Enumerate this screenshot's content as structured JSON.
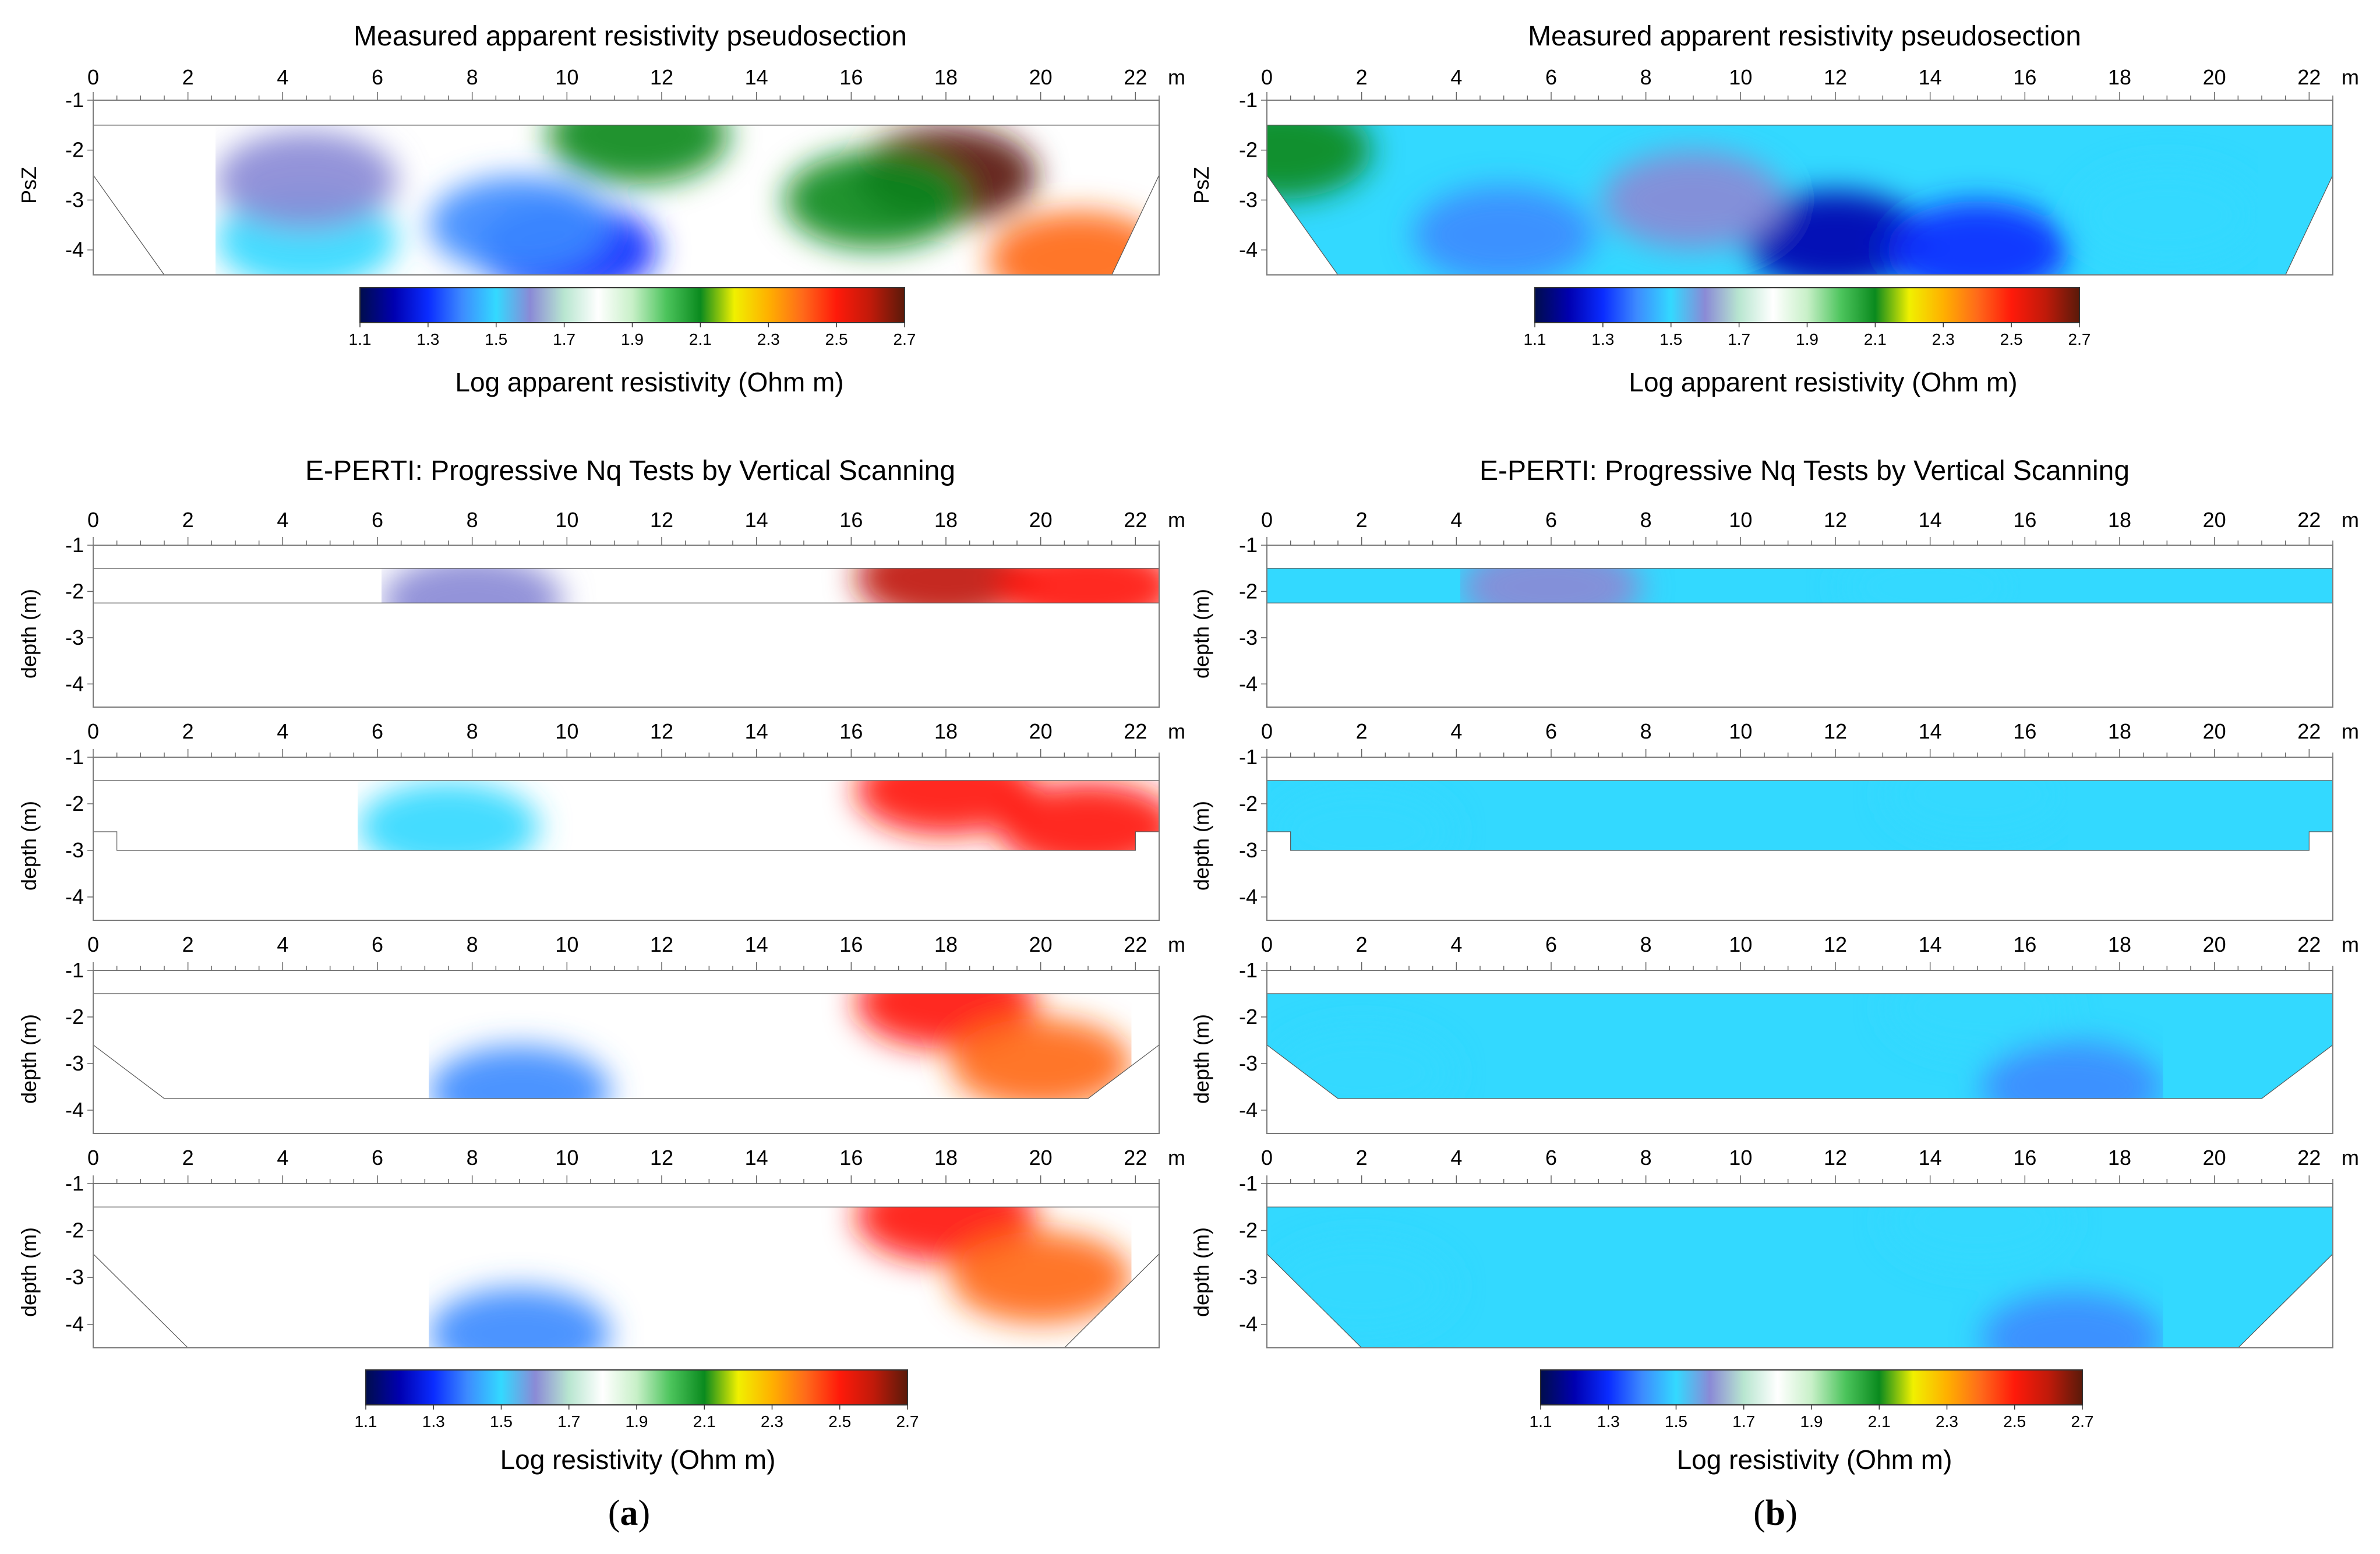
{
  "figure": {
    "columns": [
      {
        "id": "a",
        "tag": "a",
        "pseudosection": {
          "title": "Measured apparent resistivity pseudosection",
          "y_axis_label": "PsZ",
          "colorbar_title": "Log apparent resistivity (Ohm m)"
        },
        "eperti": {
          "title": "E-PERTI: Progressive Nq Tests by Vertical Scanning",
          "y_axis_label": "depth (m)",
          "colorbar_title": "Log resistivity (Ohm m)"
        }
      },
      {
        "id": "b",
        "tag": "b",
        "pseudosection": {
          "title": "Measured apparent resistivity pseudosection",
          "y_axis_label": "PsZ",
          "colorbar_title": "Log apparent resistivity (Ohm m)"
        },
        "eperti": {
          "title": "E-PERTI: Progressive Nq Tests by Vertical Scanning",
          "y_axis_label": "depth (m)",
          "colorbar_title": "Log resistivity (Ohm m)"
        }
      }
    ],
    "x_unit": "m",
    "colorbar_ticks": [
      "1.1",
      "1.3",
      "1.5",
      "1.7",
      "1.9",
      "2.1",
      "2.3",
      "2.5",
      "2.7"
    ],
    "colormap": [
      "#000d4d",
      "#0000b0",
      "#0a2cff",
      "#3d8bff",
      "#33d9ff",
      "#8a8ad6",
      "#b8e6d0",
      "#ffffff",
      "#c8f0c8",
      "#4cc45c",
      "#0a8a1e",
      "#f0f000",
      "#ffb000",
      "#ff6a1a",
      "#ff1a0a",
      "#c01a0a",
      "#5a1a0a"
    ]
  },
  "chart_data": [
    {
      "panel": "a-pseudosection",
      "type": "heatmap",
      "title": "Measured apparent resistivity pseudosection",
      "xlabel": "m",
      "ylabel": "PsZ",
      "xlim": [
        0,
        22.5
      ],
      "ylim": [
        -1,
        -4.5
      ],
      "clim": [
        1.1,
        2.7
      ],
      "x_ticks": [
        0,
        2,
        4,
        6,
        8,
        10,
        12,
        14,
        16,
        18,
        20,
        22
      ],
      "y_ticks": [
        -1,
        -2,
        -3,
        -4
      ],
      "data_top": -1.5,
      "data_bottom": -4.5,
      "outline": [
        [
          0,
          -1.5
        ],
        [
          22.5,
          -1.5
        ],
        [
          22.5,
          -2.5
        ],
        [
          21.5,
          -4.5
        ],
        [
          1.5,
          -4.5
        ],
        [
          0,
          -2.5
        ]
      ],
      "anomalies": [
        {
          "x": 18,
          "z": -2.5,
          "value": 2.7
        },
        {
          "x": 10,
          "z": -4.0,
          "value": 1.3
        },
        {
          "x": 9,
          "z": -3.5,
          "value": 1.45
        },
        {
          "x": 4.5,
          "z": -3.8,
          "value": 1.5
        },
        {
          "x": 4.5,
          "z": -2.6,
          "value": 1.65
        },
        {
          "x": 11.5,
          "z": -1.7,
          "value": 2.15
        },
        {
          "x": 16.5,
          "z": -3.0,
          "value": 2.1
        },
        {
          "x": 20.8,
          "z": -4.2,
          "value": 2.4
        }
      ]
    },
    {
      "panel": "b-pseudosection",
      "type": "heatmap",
      "title": "Measured apparent resistivity pseudosection",
      "xlabel": "m",
      "ylabel": "PsZ",
      "xlim": [
        0,
        22.5
      ],
      "ylim": [
        -1,
        -4.5
      ],
      "clim": [
        1.1,
        2.7
      ],
      "x_ticks": [
        0,
        2,
        4,
        6,
        8,
        10,
        12,
        14,
        16,
        18,
        20,
        22
      ],
      "y_ticks": [
        -1,
        -2,
        -3,
        -4
      ],
      "data_top": -1.5,
      "data_bottom": -4.5,
      "outline": [
        [
          0,
          -1.5
        ],
        [
          22.5,
          -1.5
        ],
        [
          22.5,
          -2.5
        ],
        [
          21.5,
          -4.5
        ],
        [
          1.5,
          -4.5
        ],
        [
          0,
          -2.5
        ]
      ],
      "anomalies": [
        {
          "x": 12,
          "z": -3.8,
          "value": 1.2
        },
        {
          "x": 15,
          "z": -4.0,
          "value": 1.3
        },
        {
          "x": 5,
          "z": -3.7,
          "value": 1.35
        },
        {
          "x": 0.3,
          "z": -2.0,
          "value": 2.1
        },
        {
          "x": 9,
          "z": -3.0,
          "value": 1.6
        },
        {
          "x": 19,
          "z": -3.3,
          "value": 1.55
        }
      ]
    },
    {
      "panel": "a-scan-1",
      "type": "heatmap",
      "xlabel": "m",
      "ylabel": "depth (m)",
      "xlim": [
        0,
        22.5
      ],
      "ylim": [
        -1,
        -4.5
      ],
      "clim": [
        1.1,
        2.7
      ],
      "x_ticks": [
        0,
        2,
        4,
        6,
        8,
        10,
        12,
        14,
        16,
        18,
        20,
        22
      ],
      "y_ticks": [
        -1,
        -2,
        -3,
        -4
      ],
      "data_top": -1.5,
      "data_bottom": -2.25,
      "outline": [
        [
          0,
          -1.5
        ],
        [
          22.5,
          -1.5
        ],
        [
          22.5,
          -2.25
        ],
        [
          0,
          -2.25
        ]
      ],
      "anomalies": [
        {
          "x": 18,
          "z": -1.7,
          "value": 2.6
        },
        {
          "x": 21,
          "z": -1.9,
          "value": 2.5
        },
        {
          "x": 8,
          "z": -2.2,
          "value": 1.6
        }
      ]
    },
    {
      "panel": "a-scan-2",
      "type": "heatmap",
      "xlabel": "m",
      "ylabel": "depth (m)",
      "xlim": [
        0,
        22.5
      ],
      "ylim": [
        -1,
        -4.5
      ],
      "clim": [
        1.1,
        2.7
      ],
      "x_ticks": [
        0,
        2,
        4,
        6,
        8,
        10,
        12,
        14,
        16,
        18,
        20,
        22
      ],
      "y_ticks": [
        -1,
        -2,
        -3,
        -4
      ],
      "data_top": -1.5,
      "data_bottom": -3.0,
      "outline": [
        [
          0,
          -1.5
        ],
        [
          22.5,
          -1.5
        ],
        [
          22.5,
          -2.6
        ],
        [
          22,
          -2.6
        ],
        [
          22,
          -3.0
        ],
        [
          0.5,
          -3.0
        ],
        [
          0.5,
          -2.6
        ],
        [
          0,
          -2.6
        ]
      ],
      "anomalies": [
        {
          "x": 18,
          "z": -1.7,
          "value": 2.55
        },
        {
          "x": 21,
          "z": -2.5,
          "value": 2.45
        },
        {
          "x": 7.5,
          "z": -2.5,
          "value": 1.55
        }
      ]
    },
    {
      "panel": "a-scan-3",
      "type": "heatmap",
      "xlabel": "m",
      "ylabel": "depth (m)",
      "xlim": [
        0,
        22.5
      ],
      "ylim": [
        -1,
        -4.5
      ],
      "clim": [
        1.1,
        2.7
      ],
      "x_ticks": [
        0,
        2,
        4,
        6,
        8,
        10,
        12,
        14,
        16,
        18,
        20,
        22
      ],
      "y_ticks": [
        -1,
        -2,
        -3,
        -4
      ],
      "data_top": -1.5,
      "data_bottom": -3.75,
      "outline": [
        [
          0,
          -1.5
        ],
        [
          22.5,
          -1.5
        ],
        [
          22.5,
          -2.6
        ],
        [
          21,
          -3.75
        ],
        [
          1.5,
          -3.75
        ],
        [
          0,
          -2.6
        ]
      ],
      "anomalies": [
        {
          "x": 18,
          "z": -1.7,
          "value": 2.55
        },
        {
          "x": 20,
          "z": -3.0,
          "value": 2.4
        },
        {
          "x": 9,
          "z": -3.6,
          "value": 1.45
        }
      ]
    },
    {
      "panel": "a-scan-4",
      "type": "heatmap",
      "xlabel": "m",
      "ylabel": "depth (m)",
      "xlim": [
        0,
        22.5
      ],
      "ylim": [
        -1,
        -4.5
      ],
      "clim": [
        1.1,
        2.7
      ],
      "x_ticks": [
        0,
        2,
        4,
        6,
        8,
        10,
        12,
        14,
        16,
        18,
        20,
        22
      ],
      "y_ticks": [
        -1,
        -2,
        -3,
        -4
      ],
      "data_top": -1.5,
      "data_bottom": -4.5,
      "outline": [
        [
          0,
          -1.5
        ],
        [
          22.5,
          -1.5
        ],
        [
          22.5,
          -2.5
        ],
        [
          20.5,
          -4.5
        ],
        [
          2,
          -4.5
        ],
        [
          0,
          -2.5
        ]
      ],
      "anomalies": [
        {
          "x": 18,
          "z": -1.7,
          "value": 2.55
        },
        {
          "x": 20,
          "z": -3.0,
          "value": 2.4
        },
        {
          "x": 9,
          "z": -4.2,
          "value": 1.4
        }
      ]
    },
    {
      "panel": "b-scan-1",
      "type": "heatmap",
      "xlabel": "m",
      "ylabel": "depth (m)",
      "xlim": [
        0,
        22.5
      ],
      "ylim": [
        -1,
        -4.5
      ],
      "clim": [
        1.1,
        2.7
      ],
      "x_ticks": [
        0,
        2,
        4,
        6,
        8,
        10,
        12,
        14,
        16,
        18,
        20,
        22
      ],
      "y_ticks": [
        -1,
        -2,
        -3,
        -4
      ],
      "data_top": -1.5,
      "data_bottom": -2.25,
      "outline": [
        [
          0,
          -1.5
        ],
        [
          22.5,
          -1.5
        ],
        [
          22.5,
          -2.25
        ],
        [
          0,
          -2.25
        ]
      ],
      "anomalies": [
        {
          "x": 14,
          "z": -1.9,
          "value": 1.55
        },
        {
          "x": 6,
          "z": -1.9,
          "value": 1.6
        }
      ]
    },
    {
      "panel": "b-scan-2",
      "type": "heatmap",
      "xlabel": "m",
      "ylabel": "depth (m)",
      "xlim": [
        0,
        22.5
      ],
      "ylim": [
        -1,
        -4.5
      ],
      "clim": [
        1.1,
        2.7
      ],
      "x_ticks": [
        0,
        2,
        4,
        6,
        8,
        10,
        12,
        14,
        16,
        18,
        20,
        22
      ],
      "y_ticks": [
        -1,
        -2,
        -3,
        -4
      ],
      "data_top": -1.5,
      "data_bottom": -3.0,
      "outline": [
        [
          0,
          -1.5
        ],
        [
          22.5,
          -1.5
        ],
        [
          22.5,
          -2.6
        ],
        [
          22,
          -2.6
        ],
        [
          22,
          -3.0
        ],
        [
          0.5,
          -3.0
        ],
        [
          0.5,
          -2.6
        ],
        [
          0,
          -2.6
        ]
      ],
      "anomalies": [
        {
          "x": 15,
          "z": -1.8,
          "value": 1.5
        },
        {
          "x": 2,
          "z": -2.6,
          "value": 1.55
        }
      ]
    },
    {
      "panel": "b-scan-3",
      "type": "heatmap",
      "xlabel": "m",
      "ylabel": "depth (m)",
      "xlim": [
        0,
        22.5
      ],
      "ylim": [
        -1,
        -4.5
      ],
      "clim": [
        1.1,
        2.7
      ],
      "x_ticks": [
        0,
        2,
        4,
        6,
        8,
        10,
        12,
        14,
        16,
        18,
        20,
        22
      ],
      "y_ticks": [
        -1,
        -2,
        -3,
        -4
      ],
      "data_top": -1.5,
      "data_bottom": -3.75,
      "outline": [
        [
          0,
          -1.5
        ],
        [
          22.5,
          -1.5
        ],
        [
          22.5,
          -2.6
        ],
        [
          21,
          -3.75
        ],
        [
          1.5,
          -3.75
        ],
        [
          0,
          -2.6
        ]
      ],
      "anomalies": [
        {
          "x": 15,
          "z": -1.8,
          "value": 1.5
        },
        {
          "x": 17,
          "z": -3.5,
          "value": 1.4
        },
        {
          "x": 2,
          "z": -3.2,
          "value": 1.55
        }
      ]
    },
    {
      "panel": "b-scan-4",
      "type": "heatmap",
      "xlabel": "m",
      "ylabel": "depth (m)",
      "xlim": [
        0,
        22.5
      ],
      "ylim": [
        -1,
        -4.5
      ],
      "clim": [
        1.1,
        2.7
      ],
      "x_ticks": [
        0,
        2,
        4,
        6,
        8,
        10,
        12,
        14,
        16,
        18,
        20,
        22
      ],
      "y_ticks": [
        -1,
        -2,
        -3,
        -4
      ],
      "data_top": -1.5,
      "data_bottom": -4.5,
      "outline": [
        [
          0,
          -1.5
        ],
        [
          22.5,
          -1.5
        ],
        [
          22.5,
          -2.5
        ],
        [
          20.5,
          -4.5
        ],
        [
          2,
          -4.5
        ],
        [
          0,
          -2.5
        ]
      ],
      "anomalies": [
        {
          "x": 15,
          "z": -1.8,
          "value": 1.5
        },
        {
          "x": 17,
          "z": -4.3,
          "value": 1.35
        },
        {
          "x": 2,
          "z": -3.2,
          "value": 1.55
        }
      ]
    }
  ]
}
